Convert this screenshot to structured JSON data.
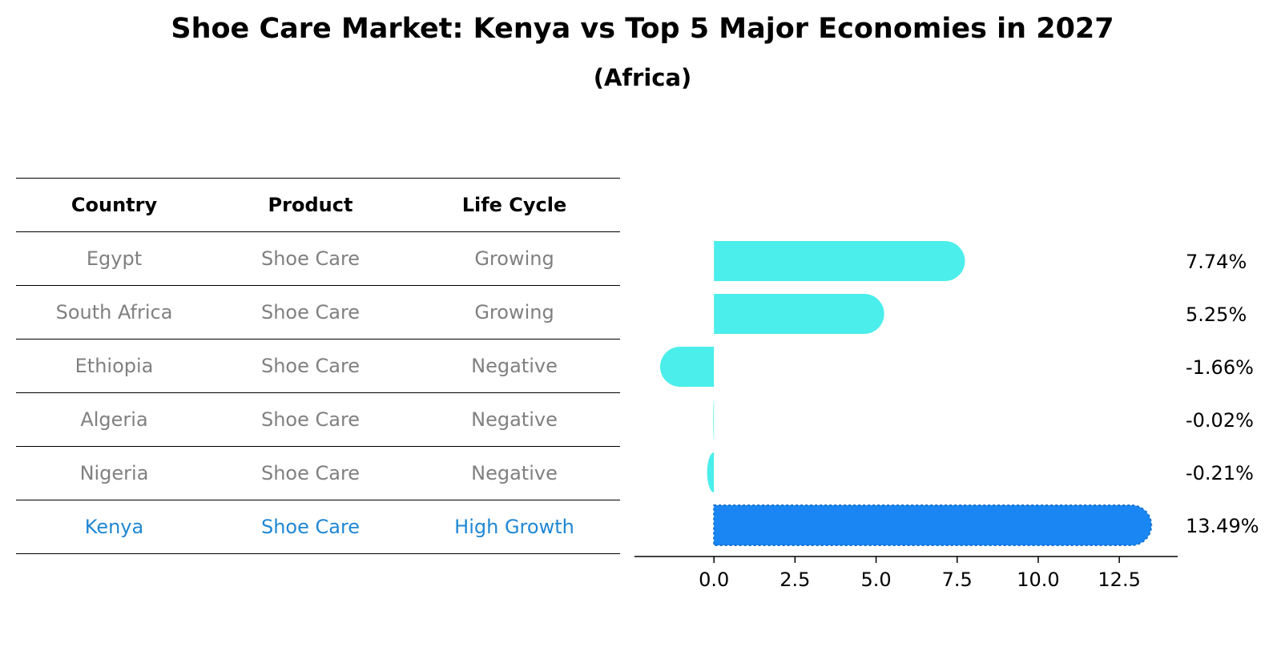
{
  "title": "Shoe Care Market: Kenya vs Top 5 Major Economies in 2027",
  "subtitle": "(Africa)",
  "table": {
    "headers": [
      "Country",
      "Product",
      "Life Cycle"
    ],
    "rows": [
      {
        "country": "Egypt",
        "product": "Shoe Care",
        "life_cycle": "Growing",
        "highlight": false
      },
      {
        "country": "South Africa",
        "product": "Shoe Care",
        "life_cycle": "Growing",
        "highlight": false
      },
      {
        "country": "Ethiopia",
        "product": "Shoe Care",
        "life_cycle": "Negative",
        "highlight": false
      },
      {
        "country": "Algeria",
        "product": "Shoe Care",
        "life_cycle": "Negative",
        "highlight": false
      },
      {
        "country": "Nigeria",
        "product": "Shoe Care",
        "life_cycle": "Negative",
        "highlight": false
      },
      {
        "country": "Kenya",
        "product": "Shoe Care",
        "life_cycle": "High Growth",
        "highlight": true
      }
    ]
  },
  "colors": {
    "bar": "#4beeea",
    "highlight_bar": "#1a86f4",
    "muted_text": "#808080",
    "highlight_text": "#1f87d4"
  },
  "chart_data": {
    "type": "bar",
    "orientation": "horizontal",
    "categories": [
      "Egypt",
      "South Africa",
      "Ethiopia",
      "Algeria",
      "Nigeria",
      "Kenya"
    ],
    "values": [
      7.74,
      5.25,
      -1.66,
      -0.02,
      -0.21,
      13.49
    ],
    "value_labels": [
      "7.74%",
      "5.25%",
      "-1.66%",
      "-0.02%",
      "-0.21%",
      "13.49%"
    ],
    "highlight": "Kenya",
    "xlim": [
      -2.45,
      14.3
    ],
    "xticks": [
      0.0,
      2.5,
      5.0,
      7.5,
      10.0,
      12.5
    ],
    "xtick_labels": [
      "0.0",
      "2.5",
      "5.0",
      "7.5",
      "10.0",
      "12.5"
    ],
    "xlabel": "",
    "ylabel": "",
    "grid": false
  }
}
